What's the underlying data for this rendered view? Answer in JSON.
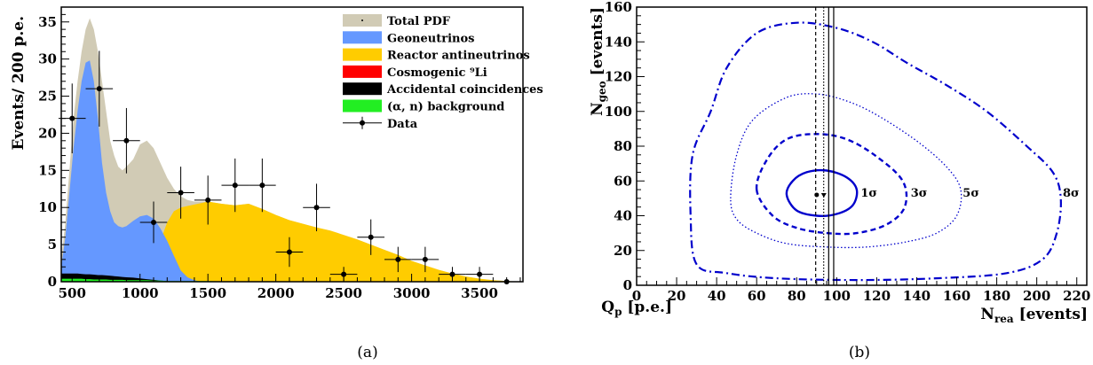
{
  "chart_data": [
    {
      "type": "area",
      "panel_label": "(a)",
      "xlabel_main": "Q",
      "xlabel_sub": "p",
      "xlabel_rest": " [p.e.]",
      "ylabel": "Events/ 200 p.e.",
      "xlim": [
        420,
        3820
      ],
      "ylim": [
        0,
        37
      ],
      "xticks": [
        500,
        1000,
        1500,
        2000,
        2500,
        3000,
        3500
      ],
      "yticks": [
        0,
        5,
        10,
        15,
        20,
        25,
        30,
        35
      ],
      "colors": {
        "total": "#d1cbb5",
        "geo": "#6598ff",
        "reactor": "#ffcc00",
        "li9": "#ff0000",
        "acc": "#000000",
        "alphan": "#22ee22"
      },
      "legend": [
        {
          "key": "total",
          "label": "Total PDF",
          "style": "dot"
        },
        {
          "key": "geo",
          "label": "Geoneutrinos",
          "style": "box"
        },
        {
          "key": "reactor",
          "label": "Reactor antineutrinos",
          "style": "box"
        },
        {
          "key": "li9",
          "label": "Cosmogenic ⁹Li",
          "style": "box"
        },
        {
          "key": "acc",
          "label": "Accidental coincidences",
          "style": "box"
        },
        {
          "key": "alphan",
          "label": "(α, n) background",
          "style": "box"
        },
        {
          "key": "data",
          "label": "Data",
          "style": "marker"
        }
      ],
      "x": [
        420,
        450,
        480,
        510,
        540,
        570,
        600,
        630,
        660,
        690,
        720,
        750,
        780,
        810,
        840,
        870,
        900,
        950,
        1000,
        1050,
        1100,
        1150,
        1200,
        1250,
        1300,
        1350,
        1400,
        1450,
        1500,
        1600,
        1700,
        1800,
        1900,
        2000,
        2100,
        2200,
        2300,
        2400,
        2500,
        2600,
        2700,
        2800,
        2900,
        3000,
        3100,
        3200,
        3300,
        3400,
        3500,
        3600,
        3700,
        3820
      ],
      "total": [
        3,
        8,
        15,
        22,
        27,
        31,
        34,
        35.5,
        34,
        31,
        27,
        23,
        19,
        17,
        15.5,
        15,
        15.5,
        16.5,
        18.5,
        19,
        18,
        16,
        14,
        12.5,
        11.5,
        11,
        10.8,
        10.8,
        10.8,
        10.5,
        10.3,
        10.5,
        9.8,
        9,
        8.3,
        7.8,
        7.3,
        6.9,
        6.3,
        5.7,
        5,
        4.3,
        3.6,
        2.8,
        2.2,
        1.6,
        1.1,
        0.7,
        0.4,
        0.2,
        0.1,
        0
      ],
      "geo": [
        2,
        6,
        12,
        18,
        23,
        27,
        29.5,
        29.8,
        27,
        22,
        16,
        12,
        9.5,
        8,
        7.5,
        7.3,
        7.5,
        8.2,
        8.8,
        9,
        8.5,
        7.2,
        5.5,
        3.5,
        1.5,
        0.6,
        0.2,
        0,
        0,
        0,
        0,
        0,
        0,
        0,
        0,
        0,
        0,
        0,
        0,
        0,
        0,
        0,
        0,
        0,
        0,
        0,
        0,
        0,
        0,
        0,
        0,
        0
      ],
      "reactor": [
        0,
        0,
        0,
        0,
        0,
        0,
        0,
        0,
        0,
        0,
        0,
        0,
        0,
        0,
        0,
        0,
        0,
        0,
        0,
        0,
        0,
        5.5,
        8,
        9.5,
        10,
        10.2,
        10.4,
        10.6,
        10.8,
        10.5,
        10.3,
        10.5,
        9.8,
        9,
        8.3,
        7.8,
        7.3,
        6.9,
        6.3,
        5.7,
        5,
        4.3,
        3.6,
        2.8,
        2.2,
        1.6,
        1.1,
        0.7,
        0.4,
        0.2,
        0.1,
        0
      ],
      "acc": [
        1.1,
        1.1,
        1.1,
        1.1,
        1.1,
        1.05,
        1.0,
        1.0,
        0.95,
        0.9,
        0.9,
        0.85,
        0.8,
        0.75,
        0.7,
        0.65,
        0.6,
        0.55,
        0.45,
        0.35,
        0.25,
        0.15,
        0.08,
        0.03,
        0,
        0,
        0,
        0,
        0,
        0,
        0,
        0,
        0,
        0,
        0,
        0,
        0,
        0,
        0,
        0,
        0,
        0,
        0,
        0,
        0,
        0,
        0,
        0,
        0,
        0,
        0,
        0
      ],
      "alphan": [
        0.4,
        0.4,
        0.4,
        0.4,
        0.4,
        0.4,
        0.35,
        0.35,
        0.3,
        0.3,
        0.3,
        0.3,
        0.25,
        0.25,
        0.25,
        0.25,
        0.2,
        0.2,
        0.2,
        0.2,
        0.15,
        0.15,
        0.1,
        0.1,
        0.1,
        0.1,
        0.1,
        0.1,
        0.1,
        0.05,
        0.05,
        0.05,
        0.05,
        0.05,
        0,
        0,
        0,
        0,
        0,
        0,
        0,
        0,
        0,
        0,
        0,
        0,
        0,
        0,
        0,
        0,
        0,
        0
      ],
      "data_points": [
        {
          "x": 500,
          "y": 22,
          "yerr": 4.7
        },
        {
          "x": 700,
          "y": 26,
          "yerr": 5.1
        },
        {
          "x": 900,
          "y": 19,
          "yerr": 4.4
        },
        {
          "x": 1100,
          "y": 8,
          "yerr": 2.8
        },
        {
          "x": 1300,
          "y": 12,
          "yerr": 3.5
        },
        {
          "x": 1500,
          "y": 11,
          "yerr": 3.3
        },
        {
          "x": 1700,
          "y": 13,
          "yerr": 3.6
        },
        {
          "x": 1900,
          "y": 13,
          "yerr": 3.6
        },
        {
          "x": 2100,
          "y": 4,
          "yerr": 2.0
        },
        {
          "x": 2300,
          "y": 10,
          "yerr": 3.2
        },
        {
          "x": 2500,
          "y": 1,
          "yerr": 1.0
        },
        {
          "x": 2700,
          "y": 6,
          "yerr": 2.4
        },
        {
          "x": 2900,
          "y": 3,
          "yerr": 1.7
        },
        {
          "x": 3100,
          "y": 3,
          "yerr": 1.7
        },
        {
          "x": 3300,
          "y": 1,
          "yerr": 1.0
        },
        {
          "x": 3500,
          "y": 1,
          "yerr": 1.0
        },
        {
          "x": 3700,
          "y": 0,
          "yerr": 0
        }
      ],
      "xerr": 100
    },
    {
      "type": "contour",
      "panel_label": "(b)",
      "xlabel_main": "N",
      "xlabel_sub": "rea",
      "xlabel_rest": " [events]",
      "ylabel_main": "N",
      "ylabel_sub": "geo",
      "ylabel_rest": " [events]",
      "xlim": [
        0,
        225
      ],
      "ylim": [
        0,
        160
      ],
      "xticks": [
        0,
        20,
        40,
        60,
        80,
        100,
        120,
        140,
        160,
        180,
        200,
        220
      ],
      "yticks": [
        0,
        20,
        40,
        60,
        80,
        100,
        120,
        140,
        160
      ],
      "contour_color": "#0000cc",
      "best_fit": {
        "x": 90,
        "y": 52
      },
      "contours": [
        {
          "label": "1σ",
          "label_x": 112,
          "label_y": 51,
          "style": "solid",
          "points": [
            [
              75,
              52
            ],
            [
              78,
              60
            ],
            [
              85,
              65
            ],
            [
              95,
              66
            ],
            [
              105,
              62
            ],
            [
              110,
              55
            ],
            [
              108,
              46
            ],
            [
              100,
              41
            ],
            [
              90,
              40
            ],
            [
              80,
              43
            ],
            [
              75,
              52
            ]
          ]
        },
        {
          "label": "3σ",
          "label_x": 137,
          "label_y": 51,
          "style": "dashed",
          "points": [
            [
              60,
              55
            ],
            [
              65,
              72
            ],
            [
              75,
              84
            ],
            [
              90,
              87
            ],
            [
              105,
              84
            ],
            [
              120,
              74
            ],
            [
              133,
              60
            ],
            [
              134,
              45
            ],
            [
              125,
              35
            ],
            [
              110,
              30
            ],
            [
              95,
              30
            ],
            [
              80,
              33
            ],
            [
              68,
              40
            ],
            [
              60,
              55
            ]
          ]
        },
        {
          "label": "5σ",
          "label_x": 163,
          "label_y": 51,
          "style": "dotted",
          "points": [
            [
              47,
              50
            ],
            [
              50,
              75
            ],
            [
              58,
              95
            ],
            [
              75,
              108
            ],
            [
              90,
              110
            ],
            [
              105,
              106
            ],
            [
              120,
              98
            ],
            [
              140,
              83
            ],
            [
              155,
              68
            ],
            [
              162,
              55
            ],
            [
              160,
              40
            ],
            [
              150,
              30
            ],
            [
              135,
              25
            ],
            [
              115,
              22
            ],
            [
              95,
              22
            ],
            [
              75,
              24
            ],
            [
              60,
              30
            ],
            [
              50,
              38
            ],
            [
              47,
              50
            ]
          ]
        },
        {
          "label": "8σ",
          "label_x": 213,
          "label_y": 51,
          "style": "dashdot",
          "points": [
            [
              30,
              12
            ],
            [
              27,
              40
            ],
            [
              28,
              75
            ],
            [
              37,
              100
            ],
            [
              45,
              125
            ],
            [
              60,
              145
            ],
            [
              80,
              151
            ],
            [
              100,
              148
            ],
            [
              118,
              140
            ],
            [
              135,
              128
            ],
            [
              155,
              115
            ],
            [
              175,
              100
            ],
            [
              195,
              80
            ],
            [
              208,
              65
            ],
            [
              212,
              50
            ],
            [
              210,
              30
            ],
            [
              203,
              15
            ],
            [
              185,
              7
            ],
            [
              150,
              4
            ],
            [
              110,
              3
            ],
            [
              70,
              4
            ],
            [
              45,
              7
            ],
            [
              30,
              12
            ]
          ]
        }
      ],
      "vlines": [
        {
          "x": 89.5,
          "style": "dashed"
        },
        {
          "x": 93.5,
          "style": "dotted"
        },
        {
          "x": 96,
          "style": "solid"
        },
        {
          "x": 98.5,
          "style": "solid"
        }
      ]
    }
  ]
}
